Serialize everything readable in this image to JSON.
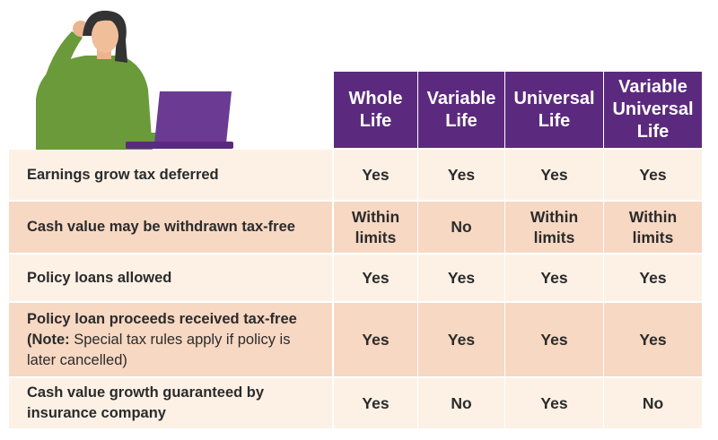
{
  "table": {
    "columns": [
      "Whole Life",
      "Variable Life",
      "Universal Life",
      "Variable Universal Life"
    ],
    "rows": [
      {
        "label": "Earnings grow tax deferred",
        "cells": [
          "Yes",
          "Yes",
          "Yes",
          "Yes"
        ]
      },
      {
        "label": "Cash value may be withdrawn tax-free",
        "cells": [
          "Within limits",
          "No",
          "Within limits",
          "Within limits"
        ]
      },
      {
        "label": "Policy loans allowed",
        "cells": [
          "Yes",
          "Yes",
          "Yes",
          "Yes"
        ]
      },
      {
        "label": "Policy loan proceeds received tax-free",
        "note_label": "(Note:",
        "note": "Special tax rules apply if policy is later cancelled)",
        "cells": [
          "Yes",
          "Yes",
          "Yes",
          "Yes"
        ]
      },
      {
        "label": "Cash value growth guaranteed by insurance company",
        "cells": [
          "Yes",
          "No",
          "Yes",
          "No"
        ]
      }
    ]
  }
}
